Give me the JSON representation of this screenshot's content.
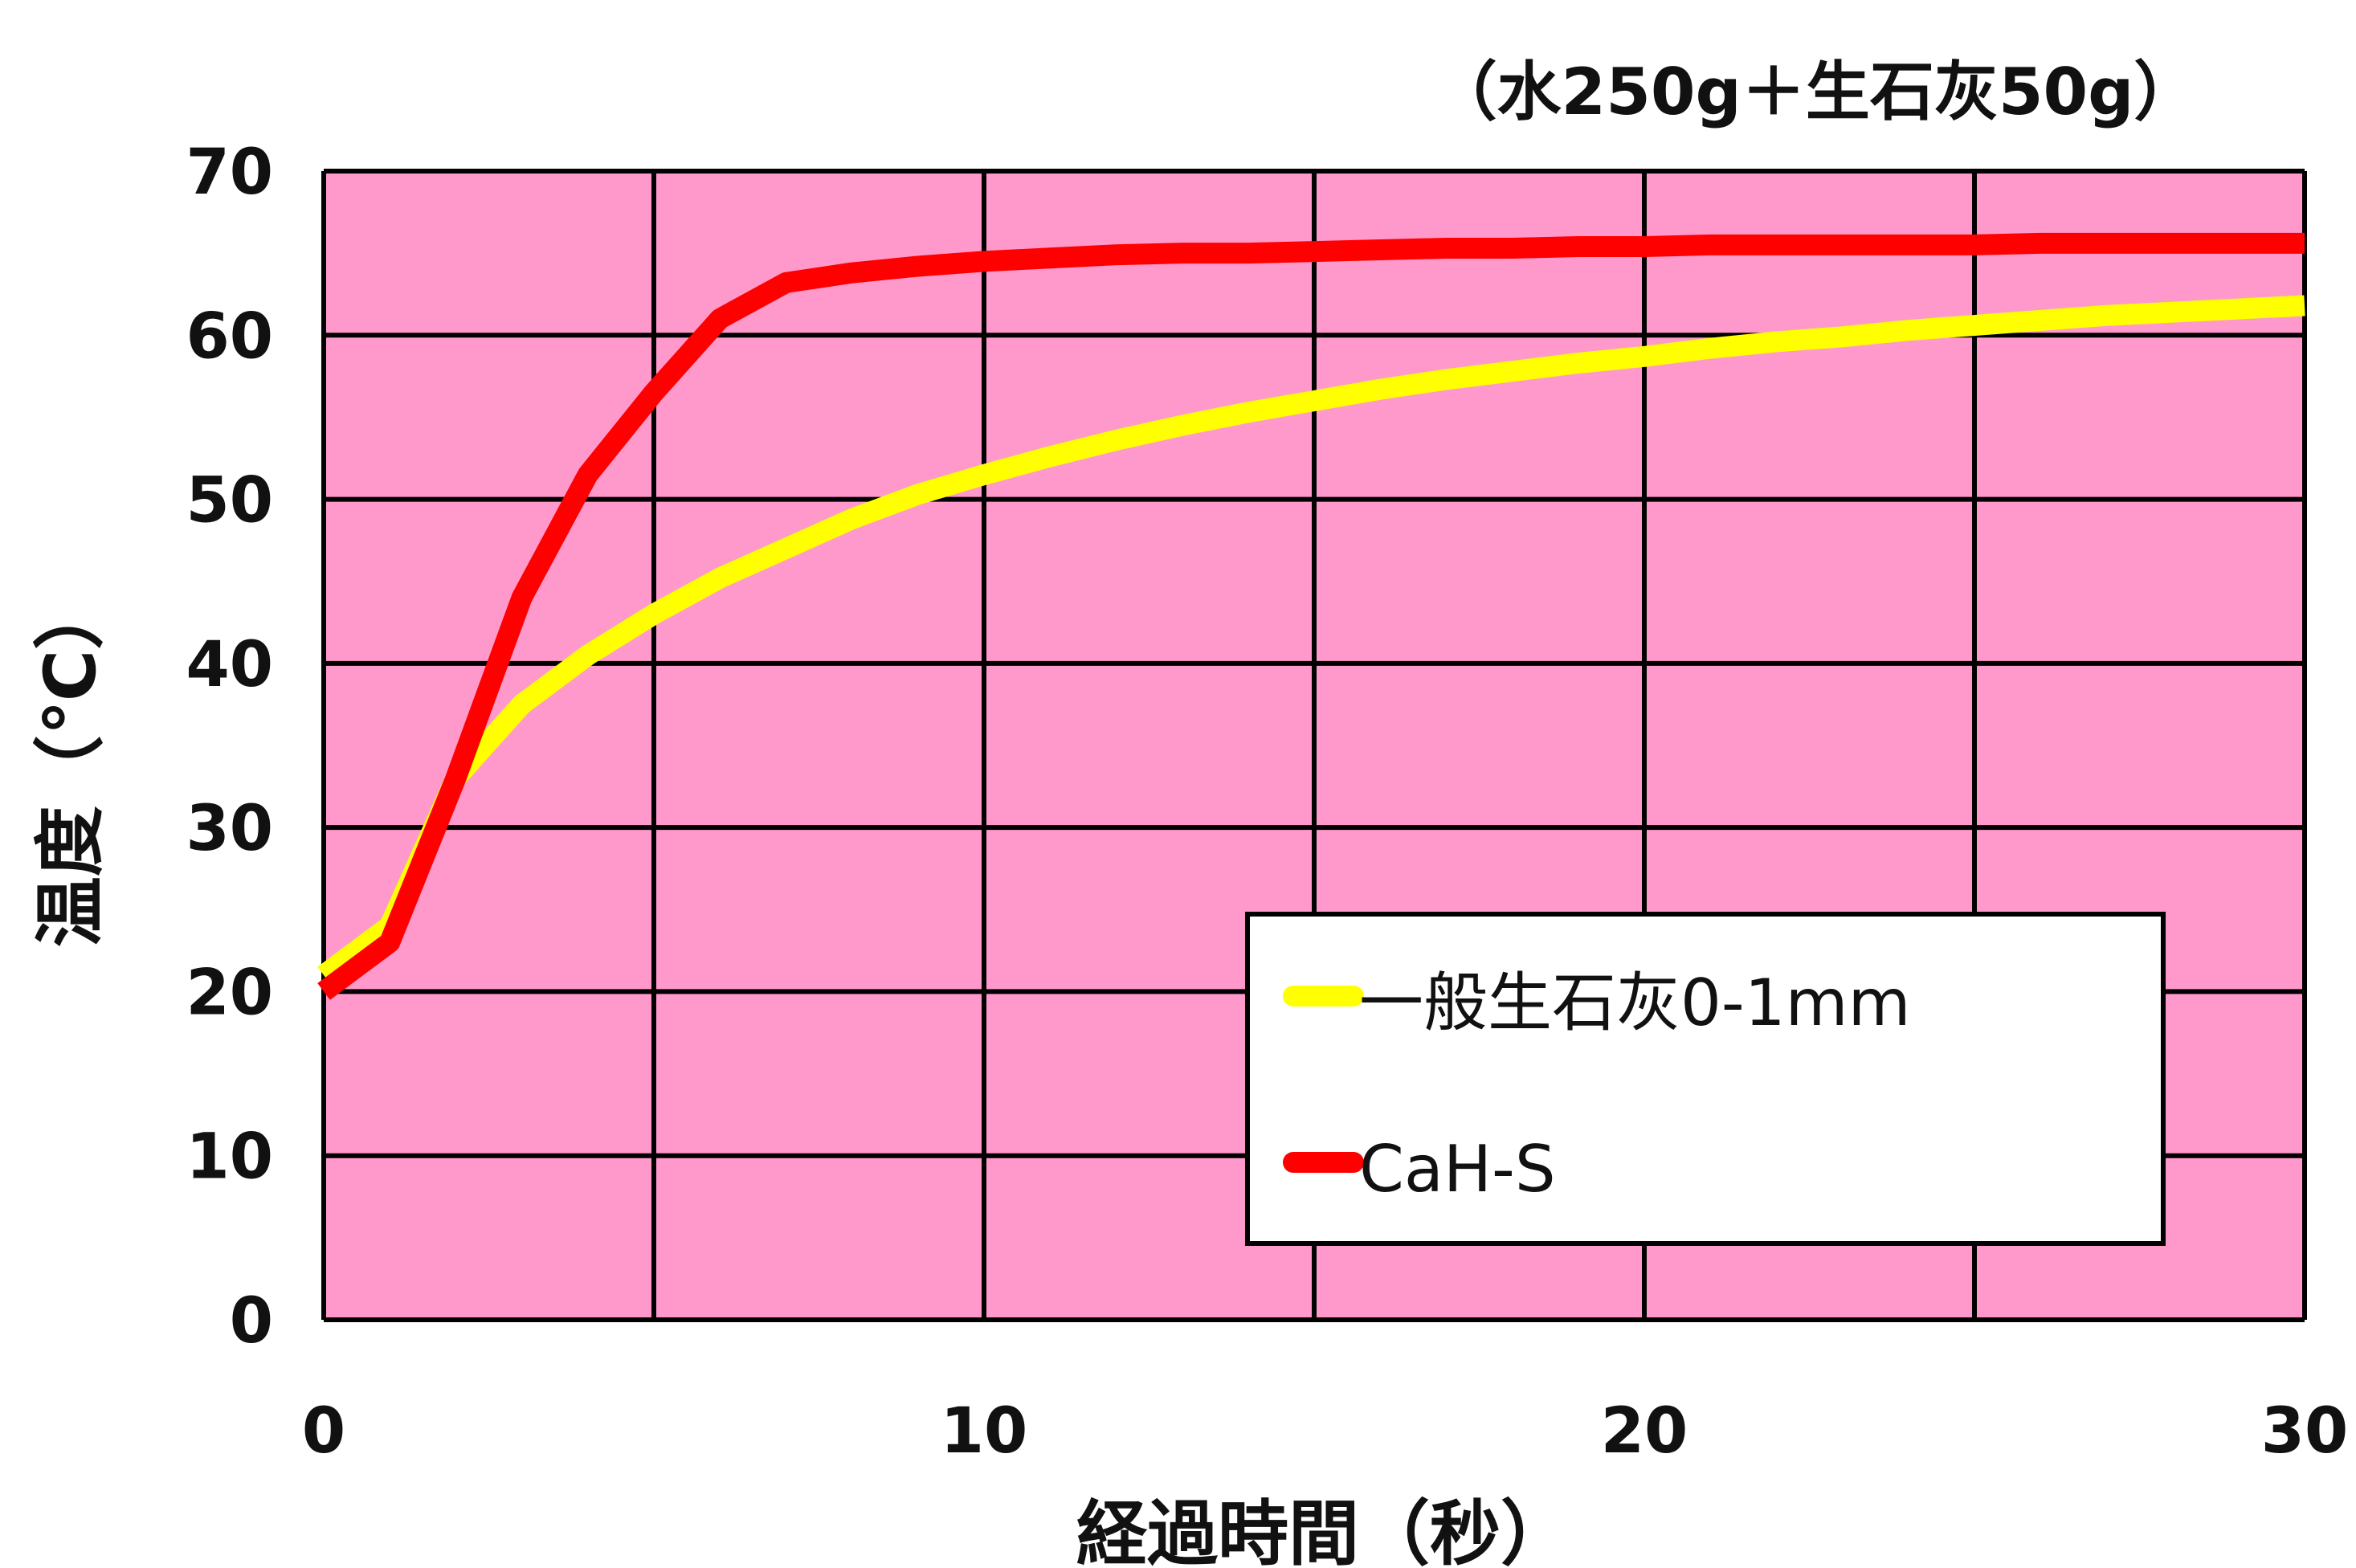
{
  "chart_data": {
    "type": "line",
    "subtitle": "（水250g＋生石灰50g）",
    "xlabel": "経過時間（秒）",
    "ylabel": "温度（℃）",
    "xlim": [
      0,
      30
    ],
    "ylim": [
      0,
      70
    ],
    "x_ticks": [
      "0",
      "10",
      "20",
      "30"
    ],
    "y_ticks": [
      "0",
      "10",
      "20",
      "30",
      "40",
      "50",
      "60",
      "70"
    ],
    "grid": true,
    "legend_position": "bottom-right",
    "plot_background": "#ff99cc",
    "series": [
      {
        "name": "一般生石灰0-1mm",
        "color": "#ffff00",
        "x": [
          0,
          1,
          2,
          3,
          4,
          5,
          6,
          7,
          8,
          9,
          10,
          11,
          12,
          13,
          14,
          15,
          16,
          17,
          18,
          19,
          20,
          21,
          22,
          23,
          24,
          25,
          26,
          27,
          28,
          29,
          30
        ],
        "y": [
          21,
          24,
          33,
          37.5,
          40.5,
          43,
          45.2,
          47,
          48.8,
          50.3,
          51.5,
          52.6,
          53.6,
          54.5,
          55.3,
          56,
          56.7,
          57.3,
          57.8,
          58.3,
          58.7,
          59.2,
          59.6,
          59.9,
          60.3,
          60.6,
          60.9,
          61.2,
          61.4,
          61.6,
          61.8
        ]
      },
      {
        "name": "CaH-S",
        "color": "#ff0000",
        "x": [
          0,
          1,
          2,
          3,
          4,
          5,
          6,
          7,
          8,
          9,
          10,
          11,
          12,
          13,
          14,
          15,
          16,
          17,
          18,
          19,
          20,
          21,
          22,
          23,
          24,
          25,
          26,
          27,
          28,
          29,
          30
        ],
        "y": [
          20,
          23,
          33,
          44,
          51.5,
          56.5,
          61,
          63.2,
          63.8,
          64.2,
          64.5,
          64.7,
          64.9,
          65,
          65,
          65.1,
          65.2,
          65.3,
          65.3,
          65.4,
          65.4,
          65.5,
          65.5,
          65.5,
          65.5,
          65.5,
          65.6,
          65.6,
          65.6,
          65.6,
          65.6
        ]
      }
    ]
  }
}
